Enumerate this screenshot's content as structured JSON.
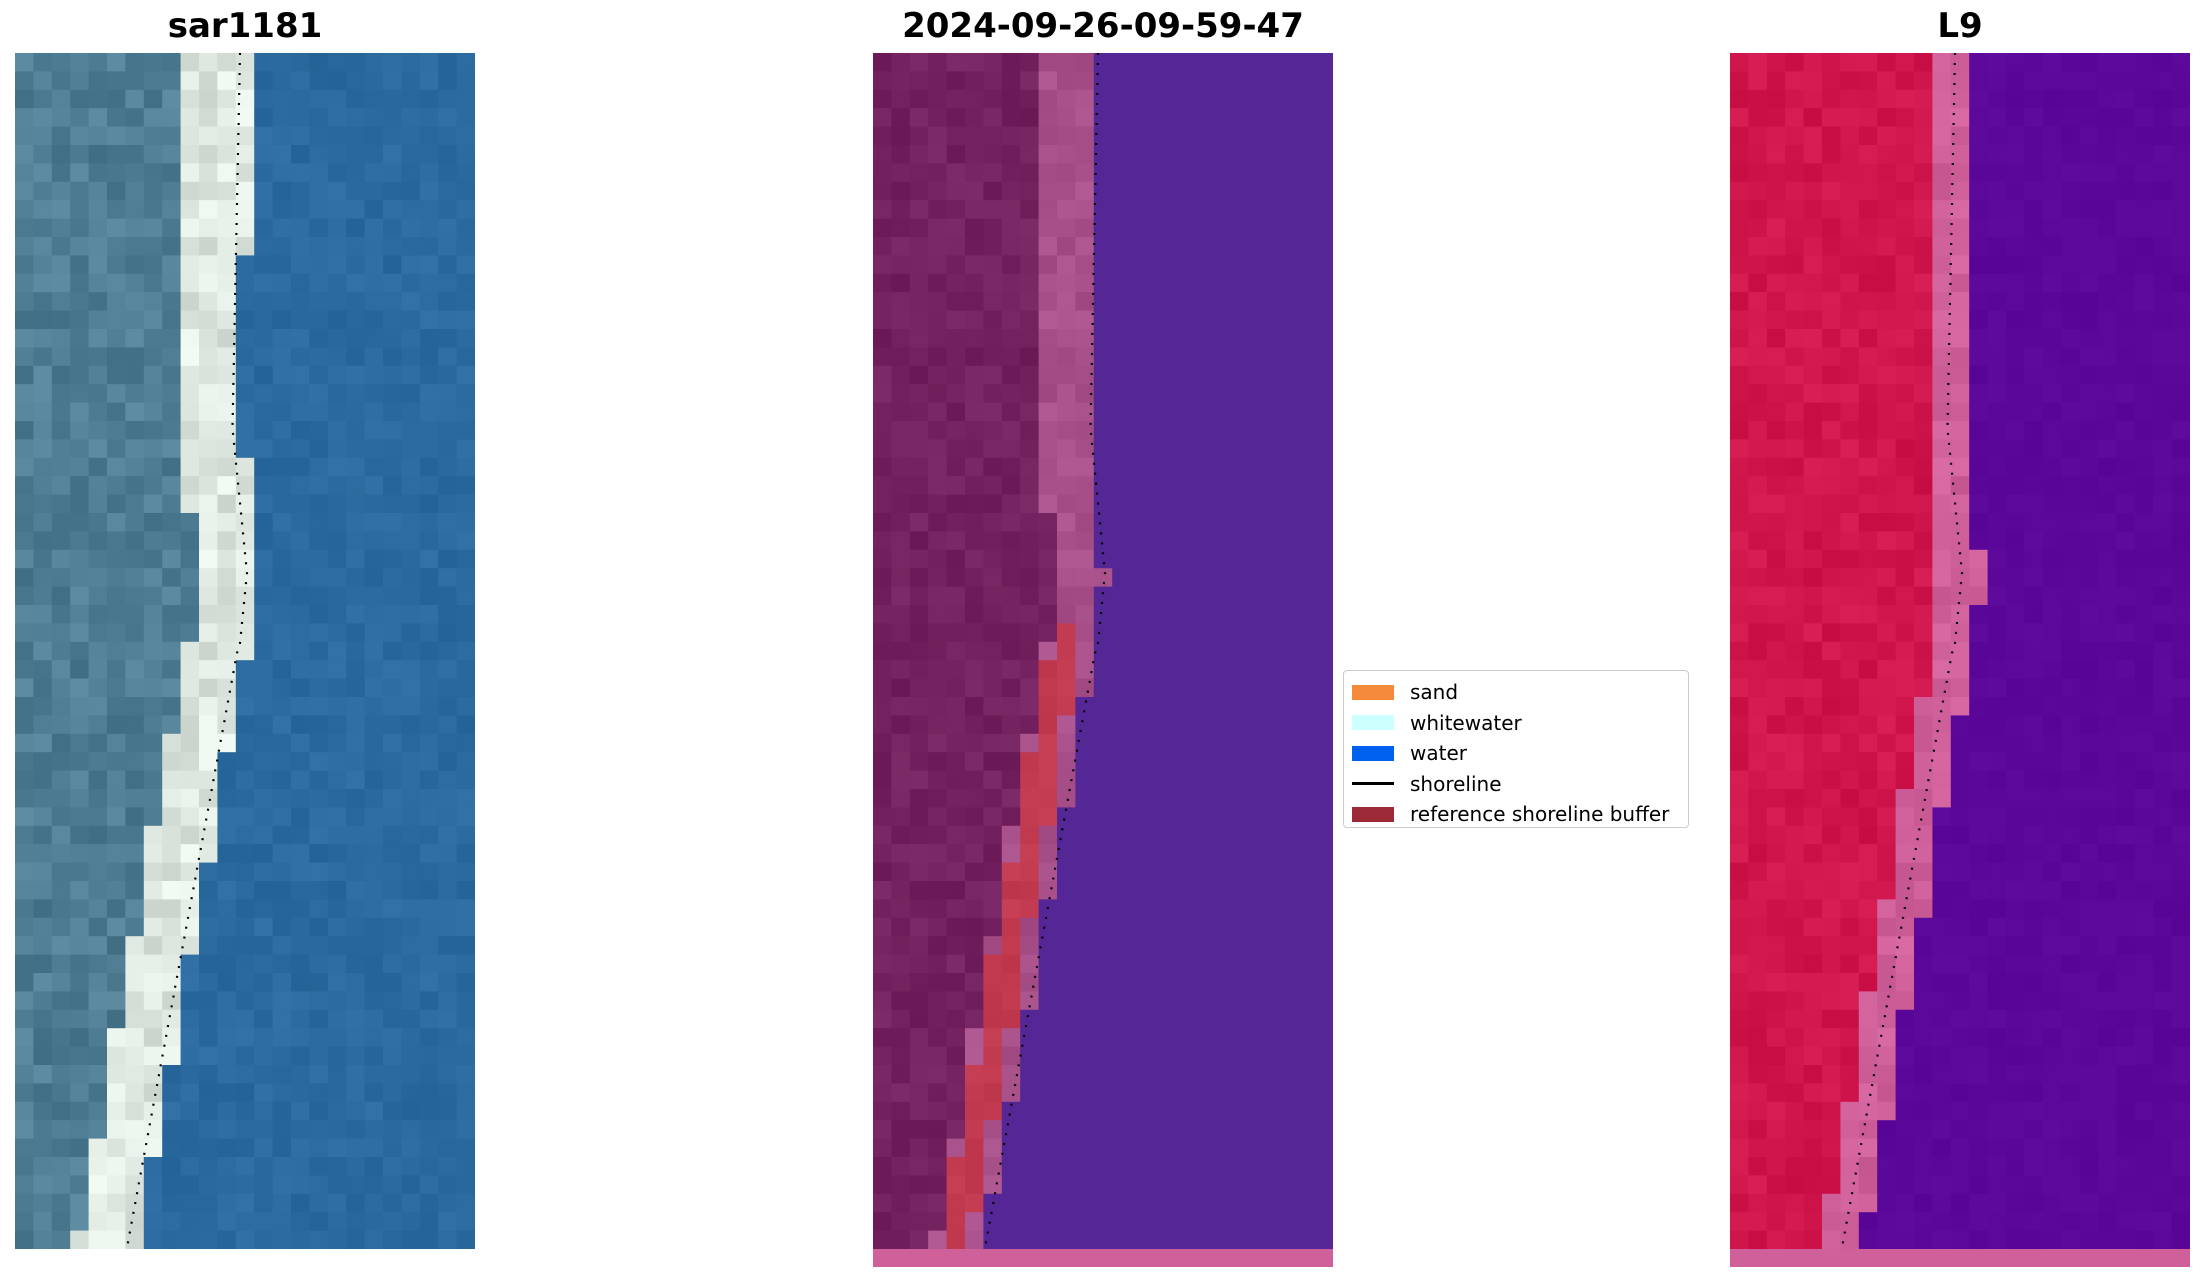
{
  "panels": [
    {
      "title": "sar1181",
      "style": "rgb"
    },
    {
      "title": "2024-09-26-09-59-47",
      "style": "classified"
    },
    {
      "title": "L9",
      "style": "falsecolor"
    }
  ],
  "legend": {
    "items": [
      {
        "label": "sand",
        "color": "#f5893a",
        "kind": "patch"
      },
      {
        "label": "whitewater",
        "color": "#ccffff",
        "kind": "patch"
      },
      {
        "label": "water",
        "color": "#0060f0",
        "kind": "patch"
      },
      {
        "label": "shoreline",
        "color": "#000000",
        "kind": "line"
      },
      {
        "label": "reference shoreline buffer",
        "color": "#9c2a37",
        "kind": "patch"
      }
    ]
  },
  "colors": {
    "rgb_water": "#2a6a9e",
    "rgb_land": "#4f7e94",
    "rgb_sand": "#dfe8e0",
    "class_water": "#542696",
    "class_land": "#74225f",
    "class_sand": "#a8508a",
    "class_buffer": "#c23a50",
    "false_water": "#5b089a",
    "false_land": "#d0154d",
    "false_sand": "#d0609a"
  }
}
